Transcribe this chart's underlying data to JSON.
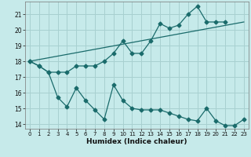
{
  "xlabel": "Humidex (Indice chaleur)",
  "background_color": "#c6eaea",
  "grid_color": "#a8d0d0",
  "line_color": "#1a6b6b",
  "xlim": [
    -0.5,
    23.5
  ],
  "ylim": [
    13.7,
    21.8
  ],
  "yticks": [
    14,
    15,
    16,
    17,
    18,
    19,
    20,
    21
  ],
  "xticks": [
    0,
    1,
    2,
    3,
    4,
    5,
    6,
    7,
    8,
    9,
    10,
    11,
    12,
    13,
    14,
    15,
    16,
    17,
    18,
    19,
    20,
    21,
    22,
    23
  ],
  "line1_x": [
    0,
    1,
    2,
    3,
    4,
    5,
    6,
    7,
    8,
    9,
    10,
    11,
    12,
    13,
    14,
    15,
    16,
    17,
    18,
    19,
    20,
    21
  ],
  "line1_y": [
    18,
    17.7,
    17.3,
    17.3,
    17.3,
    17.7,
    17.7,
    17.7,
    18.0,
    18.5,
    19.3,
    18.5,
    18.5,
    19.3,
    20.4,
    20.1,
    20.3,
    21.0,
    21.5,
    20.5,
    20.5,
    20.5
  ],
  "line2_x": [
    0,
    1,
    2,
    3,
    4,
    5,
    6,
    7,
    8,
    9,
    10,
    11,
    12,
    13,
    14,
    15,
    16,
    17,
    18,
    19,
    20,
    21,
    22,
    23
  ],
  "line2_y": [
    18,
    17.7,
    17.3,
    15.7,
    15.1,
    16.3,
    15.5,
    14.9,
    14.3,
    16.5,
    15.5,
    15.0,
    14.9,
    14.9,
    14.9,
    14.7,
    14.5,
    14.3,
    14.2,
    15.0,
    14.2,
    13.9,
    13.9,
    14.3
  ],
  "line3_x": [
    0,
    23
  ],
  "line3_y": [
    18,
    20.5
  ]
}
